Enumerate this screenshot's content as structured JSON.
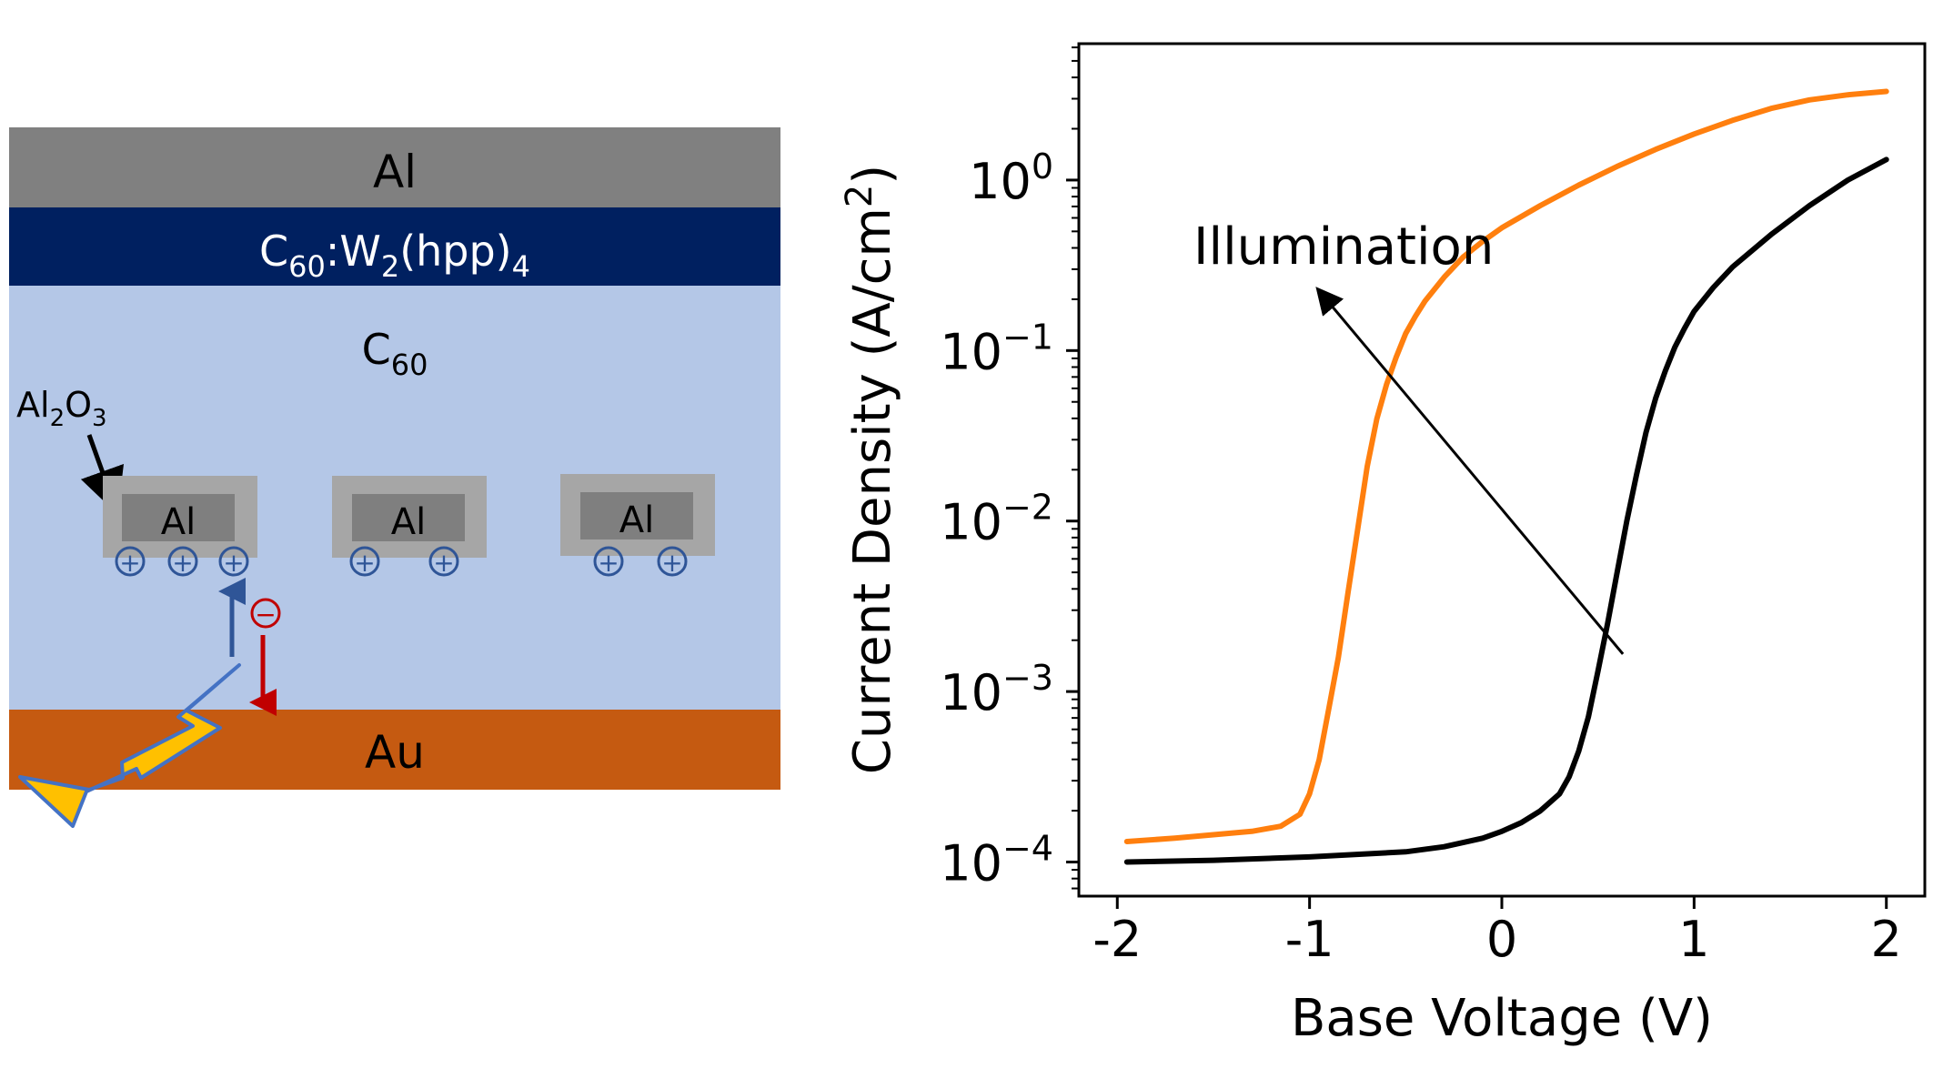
{
  "diagram": {
    "layers": {
      "top_electrode": "Al",
      "dopant_layer": {
        "base": "C",
        "sub": "60",
        "mid": ":W",
        "sub2": "2",
        "paren": "(hpp)",
        "sub3": "4"
      },
      "semiconductor": {
        "base": "C",
        "sub": "60"
      },
      "bottom_electrode": "Au"
    },
    "oxide_label": {
      "a": "Al",
      "a_sub": "2",
      "b": "O",
      "b_sub": "3"
    },
    "grid_label": "Al",
    "hole_symbol": "+",
    "electron_symbol": "−",
    "colors": {
      "al_top": "#808080",
      "dopant": "#002060",
      "c60": "#b4c7e7",
      "au": "#c55a11",
      "oxide": "#a6a6a6",
      "grid_al": "#7f7f7f",
      "hole": "#2f5597",
      "electron": "#c00000",
      "flash_fill": "#ffc000",
      "flash_stroke": "#4472c4"
    }
  },
  "chart_data": {
    "type": "line",
    "xlabel": "Base Voltage (V)",
    "ylabel_main": "Current Density (A/cm",
    "ylabel_sup": "2",
    "ylabel_end": ")",
    "xlim": [
      -2.2,
      2.2
    ],
    "ylim_log10": [
      -4.2,
      0.8
    ],
    "yscale": "log",
    "x_ticks": [
      -2,
      -1,
      0,
      1,
      2
    ],
    "x_tick_labels": [
      "-2",
      "-1",
      "0",
      "1",
      "2"
    ],
    "y_ticks": [
      {
        "base": "10",
        "exp": "0",
        "log10": 0
      },
      {
        "base": "10",
        "exp": "−1",
        "log10": -1
      },
      {
        "base": "10",
        "exp": "−2",
        "log10": -2
      },
      {
        "base": "10",
        "exp": "−3",
        "log10": -3
      },
      {
        "base": "10",
        "exp": "−4",
        "log10": -4
      }
    ],
    "annotation": {
      "text": "Illumination",
      "arrow_from": [
        0.63,
        -2.78
      ],
      "arrow_to": [
        -0.95,
        -0.65
      ]
    },
    "series": [
      {
        "color": "#ff7f0e",
        "x": [
          -1.95,
          -1.7,
          -1.5,
          -1.3,
          -1.15,
          -1.05,
          -1.0,
          -0.95,
          -0.9,
          -0.85,
          -0.8,
          -0.75,
          -0.7,
          -0.65,
          -0.6,
          -0.55,
          -0.5,
          -0.45,
          -0.4,
          -0.3,
          -0.2,
          -0.1,
          0.0,
          0.2,
          0.4,
          0.6,
          0.8,
          1.0,
          1.2,
          1.4,
          1.6,
          1.8,
          2.0
        ],
        "log10y": [
          -3.88,
          -3.86,
          -3.84,
          -3.82,
          -3.79,
          -3.72,
          -3.6,
          -3.4,
          -3.1,
          -2.8,
          -2.42,
          -2.05,
          -1.68,
          -1.4,
          -1.2,
          -1.04,
          -0.9,
          -0.8,
          -0.71,
          -0.57,
          -0.45,
          -0.36,
          -0.28,
          -0.15,
          -0.03,
          0.08,
          0.18,
          0.27,
          0.35,
          0.42,
          0.47,
          0.5,
          0.52
        ]
      },
      {
        "color": "#000000",
        "x": [
          -1.95,
          -1.5,
          -1.0,
          -0.5,
          -0.3,
          -0.1,
          0.0,
          0.1,
          0.2,
          0.3,
          0.35,
          0.4,
          0.45,
          0.5,
          0.55,
          0.6,
          0.65,
          0.7,
          0.75,
          0.8,
          0.85,
          0.9,
          0.95,
          1.0,
          1.1,
          1.2,
          1.4,
          1.6,
          1.8,
          2.0
        ],
        "log10y": [
          -4.0,
          -3.99,
          -3.97,
          -3.94,
          -3.91,
          -3.86,
          -3.82,
          -3.77,
          -3.7,
          -3.6,
          -3.5,
          -3.35,
          -3.15,
          -2.88,
          -2.6,
          -2.3,
          -2.0,
          -1.73,
          -1.48,
          -1.28,
          -1.12,
          -0.98,
          -0.87,
          -0.77,
          -0.63,
          -0.51,
          -0.32,
          -0.15,
          -0.0,
          0.12
        ]
      }
    ]
  }
}
